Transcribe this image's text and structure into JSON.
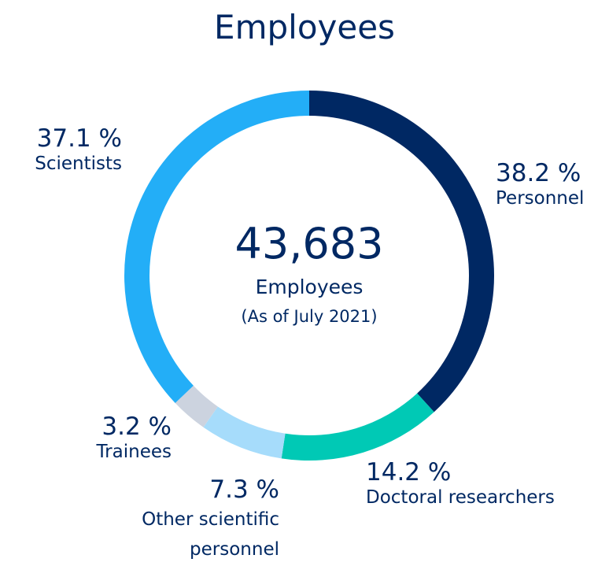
{
  "chart_data": {
    "type": "donut",
    "title": "Employees",
    "center_value": "43,683",
    "center_label": "Employees",
    "center_note": "(As of July 2021)",
    "categories": [
      "Personnel",
      "Doctoral researchers",
      "Other scientific personnel",
      "Trainees",
      "Scientists"
    ],
    "values": [
      38.2,
      14.2,
      7.3,
      3.2,
      37.1
    ],
    "value_labels": [
      "38.2 %",
      "14.2 %",
      "7.3 %",
      "3.2 %",
      "37.1 %"
    ],
    "colors": [
      "#002863",
      "#00c9b5",
      "#a6dcfb",
      "#ccd3df",
      "#23aef7"
    ]
  }
}
